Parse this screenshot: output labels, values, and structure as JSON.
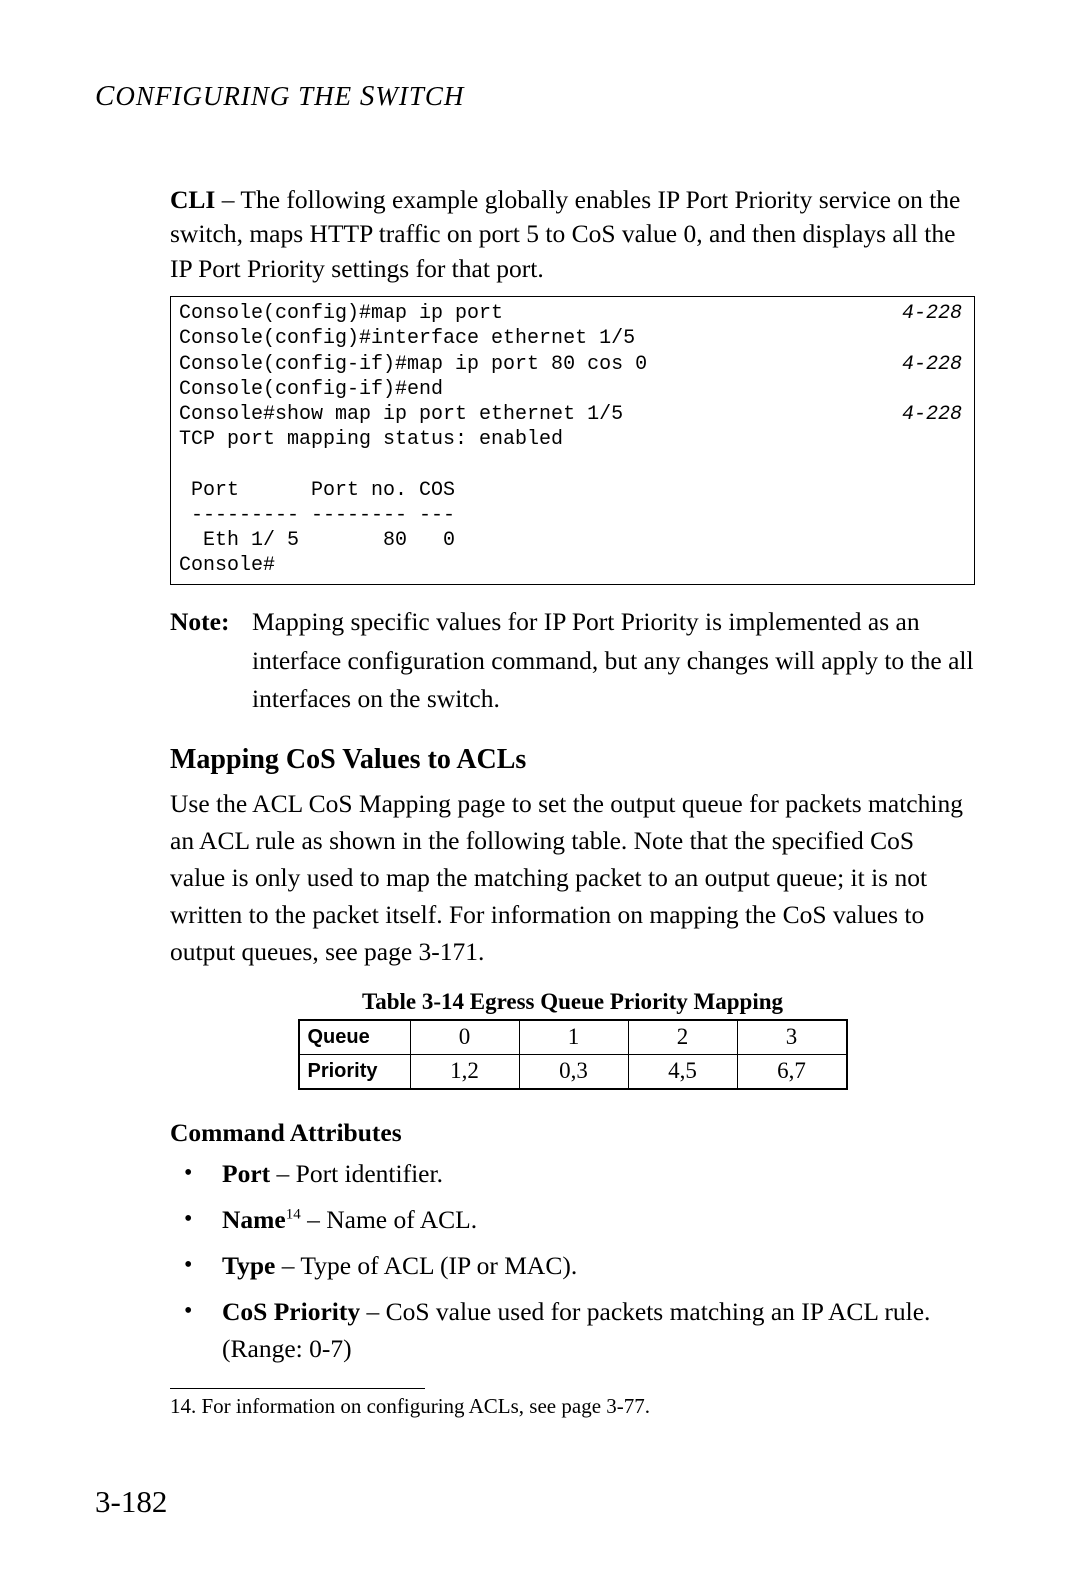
{
  "runningHead": "Configuring the Switch",
  "intro": {
    "prefixBold": "CLI",
    "rest": " – The following example globally enables IP Port Priority service on the switch, maps HTTP traffic on port 5 to CoS value 0, and then displays all the IP Port Priority settings for that port."
  },
  "cli": {
    "lines": [
      {
        "text": "Console(config)#map ip port",
        "ref": "4-228"
      },
      {
        "text": "Console(config)#interface ethernet 1/5",
        "ref": ""
      },
      {
        "text": "Console(config-if)#map ip port 80 cos 0",
        "ref": "4-228"
      },
      {
        "text": "Console(config-if)#end",
        "ref": ""
      },
      {
        "text": "Console#show map ip port ethernet 1/5",
        "ref": "4-228"
      },
      {
        "text": "TCP port mapping status: enabled",
        "ref": ""
      },
      {
        "text": "",
        "ref": ""
      },
      {
        "text": " Port      Port no. COS",
        "ref": ""
      },
      {
        "text": " --------- -------- ---",
        "ref": ""
      },
      {
        "text": "  Eth 1/ 5       80   0",
        "ref": ""
      },
      {
        "text": "Console#",
        "ref": ""
      }
    ],
    "font_family": "Courier New",
    "font_size_pt": 15,
    "border_color": "#000000"
  },
  "note": {
    "label": "Note:",
    "text": "Mapping specific values for IP Port Priority is implemented as an interface configuration command, but any changes will apply to the all interfaces on the switch."
  },
  "section1": {
    "heading": "Mapping CoS Values to ACLs",
    "para": "Use the ACL CoS Mapping page to set the output queue for packets matching an ACL rule as shown in the following table. Note that the specified CoS value is only used to map the matching packet to an output queue; it is not written to the packet itself. For information on mapping the CoS values to output queues, see page 3-171."
  },
  "table": {
    "caption": "Table 3-14  Egress Queue Priority Mapping",
    "rows": [
      {
        "label": "Queue",
        "cells": [
          "0",
          "1",
          "2",
          "3"
        ]
      },
      {
        "label": "Priority",
        "cells": [
          "1,2",
          "0,3",
          "4,5",
          "6,7"
        ]
      }
    ],
    "border_color": "#000000",
    "header_font": "Arial",
    "cell_font": "Garamond"
  },
  "section2": {
    "heading": "Command Attributes",
    "items": [
      {
        "name": "Port",
        "sup": "",
        "desc": " – Port identifier."
      },
      {
        "name": "Name",
        "sup": "14",
        "desc": " – Name of ACL."
      },
      {
        "name": "Type",
        "sup": "",
        "desc": " – Type of ACL (IP or MAC)."
      },
      {
        "name": "CoS Priority",
        "sup": "",
        "desc": " – CoS value used for packets matching an IP ACL rule. (Range: 0-7)"
      }
    ]
  },
  "footnote": {
    "num": "14.",
    "text": " For information on configuring ACLs, see page 3-77."
  },
  "pageNumber": "3-182",
  "colors": {
    "text": "#000000",
    "background": "#ffffff"
  },
  "typography": {
    "body_font": "Garamond",
    "mono_font": "Courier New",
    "body_size_pt": 19,
    "h2_size_pt": 21
  }
}
